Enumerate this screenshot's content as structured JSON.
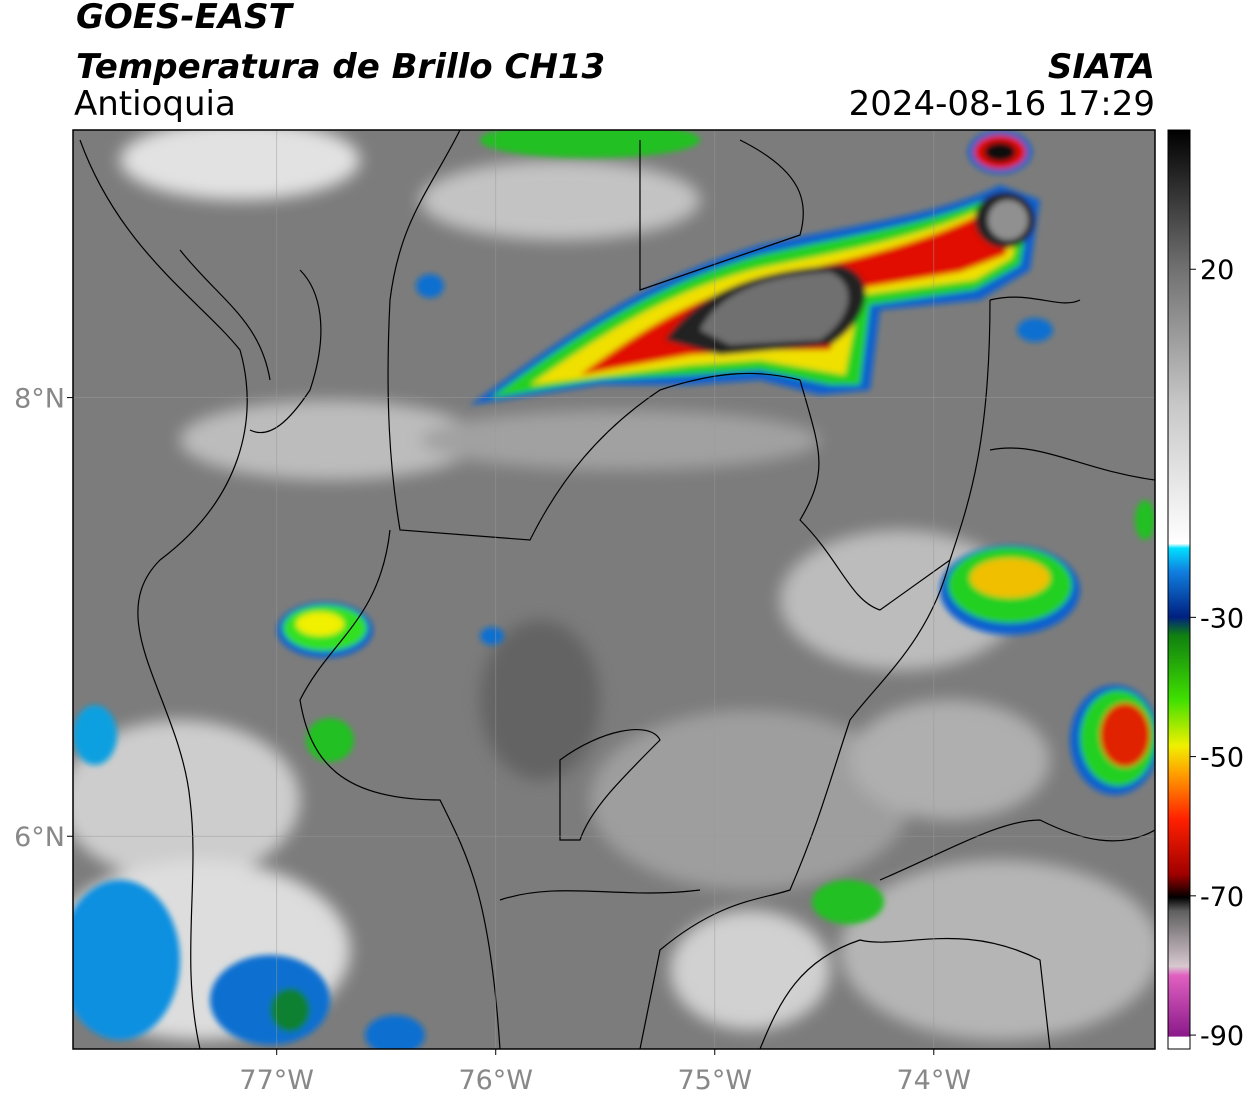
{
  "header": {
    "title": "GOES-EAST",
    "subtitle": "Temperatura de Brillo CH13",
    "region": "Antioquia",
    "source": "SIATA",
    "datetime": "2024-08-16 17:29"
  },
  "map": {
    "xlim": [
      -77.93,
      -72.99
    ],
    "ylim": [
      5.03,
      9.22
    ],
    "xticks": [
      {
        "value": -77,
        "label": "77°W"
      },
      {
        "value": -76,
        "label": "76°W"
      },
      {
        "value": -75,
        "label": "75°W"
      },
      {
        "value": -74,
        "label": "74°W"
      }
    ],
    "yticks": [
      {
        "value": 8,
        "label": "8°N"
      },
      {
        "value": 6,
        "label": "6°N"
      }
    ],
    "grid": true
  },
  "colorbar": {
    "lim": [
      -92,
      40
    ],
    "ticks": [
      20,
      -30,
      -50,
      -70,
      -90
    ]
  }
}
